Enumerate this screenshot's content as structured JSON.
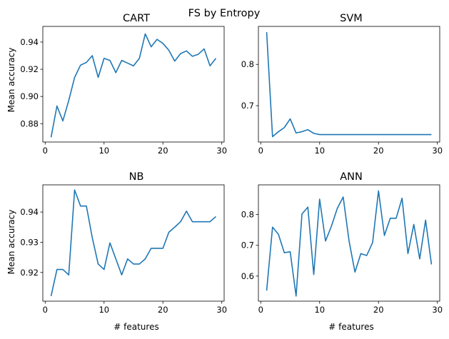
{
  "title": "FS by Entropy",
  "chart_data": [
    {
      "type": "line",
      "title": "CART",
      "xlabel": "",
      "ylabel": "Mean accuracy",
      "xlim": [
        -0.4,
        30.4
      ],
      "ylim": [
        0.8665,
        0.9515
      ],
      "xticks": [
        0,
        10,
        20,
        30
      ],
      "yticks": [
        0.88,
        0.9,
        0.92,
        0.94
      ],
      "ytick_labels": [
        "0.88",
        "0.90",
        "0.92",
        "0.94"
      ],
      "color": "#1f77b4",
      "x": [
        1,
        2,
        3,
        4,
        5,
        6,
        7,
        8,
        9,
        10,
        11,
        12,
        13,
        14,
        15,
        16,
        17,
        18,
        19,
        20,
        21,
        22,
        23,
        24,
        25,
        26,
        27,
        28,
        29
      ],
      "values": [
        0.87,
        0.893,
        0.882,
        0.897,
        0.914,
        0.923,
        0.925,
        0.93,
        0.914,
        0.928,
        0.9265,
        0.9175,
        0.9265,
        0.9245,
        0.9225,
        0.928,
        0.946,
        0.9365,
        0.942,
        0.939,
        0.934,
        0.926,
        0.9315,
        0.9335,
        0.9295,
        0.931,
        0.935,
        0.9225,
        0.928
      ]
    },
    {
      "type": "line",
      "title": "SVM",
      "xlabel": "",
      "ylabel": "",
      "xlim": [
        -0.4,
        30.4
      ],
      "ylim": [
        0.612,
        0.892
      ],
      "xticks": [
        0,
        10,
        20,
        30
      ],
      "yticks": [
        0.7,
        0.8
      ],
      "ytick_labels": [
        "0.7",
        "0.8"
      ],
      "color": "#1f77b4",
      "x": [
        1,
        2,
        3,
        4,
        5,
        6,
        7,
        8,
        9,
        10,
        11,
        12,
        13,
        14,
        15,
        16,
        17,
        18,
        19,
        20,
        21,
        22,
        23,
        24,
        25,
        26,
        27,
        28,
        29
      ],
      "values": [
        0.878,
        0.625,
        0.637,
        0.647,
        0.668,
        0.634,
        0.637,
        0.642,
        0.633,
        0.63,
        0.63,
        0.63,
        0.63,
        0.63,
        0.63,
        0.63,
        0.63,
        0.63,
        0.63,
        0.63,
        0.63,
        0.63,
        0.63,
        0.63,
        0.63,
        0.63,
        0.63,
        0.63,
        0.63
      ]
    },
    {
      "type": "line",
      "title": "NB",
      "xlabel": "# features",
      "ylabel": "Mean accuracy",
      "xlim": [
        -0.4,
        30.4
      ],
      "ylim": [
        0.9105,
        0.949
      ],
      "xticks": [
        0,
        10,
        20,
        30
      ],
      "yticks": [
        0.92,
        0.93,
        0.94
      ],
      "ytick_labels": [
        "0.92",
        "0.93",
        "0.94"
      ],
      "color": "#1f77b4",
      "x": [
        1,
        2,
        3,
        4,
        5,
        6,
        7,
        8,
        9,
        10,
        11,
        12,
        13,
        14,
        15,
        16,
        17,
        18,
        19,
        20,
        21,
        22,
        23,
        24,
        25,
        26,
        27,
        28,
        29
      ],
      "values": [
        0.9122,
        0.921,
        0.921,
        0.9192,
        0.9473,
        0.942,
        0.942,
        0.9315,
        0.9228,
        0.921,
        0.9298,
        0.9245,
        0.9192,
        0.9245,
        0.9228,
        0.9228,
        0.9245,
        0.928,
        0.928,
        0.928,
        0.9333,
        0.935,
        0.9368,
        0.9403,
        0.9368,
        0.9368,
        0.9368,
        0.9368,
        0.9385
      ]
    },
    {
      "type": "line",
      "title": "ANN",
      "xlabel": "# features",
      "ylabel": "",
      "xlim": [
        -0.4,
        30.4
      ],
      "ylim": [
        0.5185,
        0.8965
      ],
      "xticks": [
        0,
        10,
        20,
        30
      ],
      "yticks": [
        0.6,
        0.7,
        0.8
      ],
      "ytick_labels": [
        "0.6",
        "0.7",
        "0.8"
      ],
      "color": "#1f77b4",
      "x": [
        1,
        2,
        3,
        4,
        5,
        6,
        7,
        8,
        9,
        10,
        11,
        12,
        13,
        14,
        15,
        16,
        17,
        18,
        19,
        20,
        21,
        22,
        23,
        24,
        25,
        26,
        27,
        28,
        29
      ],
      "values": [
        0.553,
        0.759,
        0.736,
        0.676,
        0.679,
        0.535,
        0.802,
        0.824,
        0.605,
        0.85,
        0.714,
        0.762,
        0.82,
        0.857,
        0.714,
        0.613,
        0.673,
        0.667,
        0.709,
        0.877,
        0.732,
        0.788,
        0.788,
        0.853,
        0.673,
        0.768,
        0.656,
        0.782,
        0.638
      ]
    }
  ]
}
